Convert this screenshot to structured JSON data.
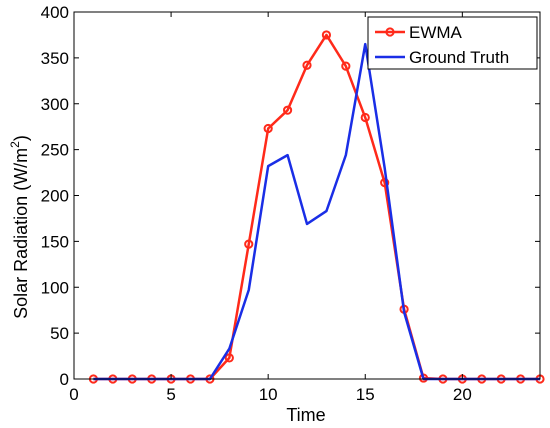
{
  "chart_data": {
    "type": "line",
    "xlabel": "Time",
    "ylabel": "Solar Radiation (W/m",
    "ylabel_superscript": "2",
    "ylabel_suffix": ")",
    "xlim": [
      0,
      24
    ],
    "ylim": [
      0,
      400
    ],
    "xticks": [
      0,
      5,
      10,
      15,
      20
    ],
    "yticks": [
      0,
      50,
      100,
      150,
      200,
      250,
      300,
      350,
      400
    ],
    "grid": false,
    "legend_position": "top-right",
    "series": [
      {
        "name": "EWMA",
        "color": "#ff2a1a",
        "marker": "circle",
        "x": [
          1,
          2,
          3,
          4,
          5,
          6,
          7,
          8,
          9,
          10,
          11,
          12,
          13,
          14,
          15,
          16,
          17,
          18,
          19,
          20,
          21,
          22,
          23,
          24
        ],
        "y": [
          0,
          0,
          0,
          0,
          0,
          0,
          0,
          23,
          147,
          273,
          293,
          342,
          375,
          341,
          285,
          214,
          76,
          1,
          0,
          0,
          0,
          0,
          0,
          0
        ]
      },
      {
        "name": "Ground Truth",
        "color": "#1a2ee6",
        "marker": "none",
        "x": [
          1,
          2,
          3,
          4,
          5,
          6,
          7,
          8,
          9,
          10,
          11,
          12,
          13,
          14,
          15,
          16,
          17,
          18,
          19,
          20,
          21,
          22,
          23,
          24
        ],
        "y": [
          0,
          0,
          0,
          0,
          0,
          0,
          0,
          33,
          97,
          232,
          244,
          169,
          183,
          244,
          365,
          230,
          73,
          0,
          0,
          0,
          0,
          0,
          0,
          0
        ]
      }
    ]
  }
}
